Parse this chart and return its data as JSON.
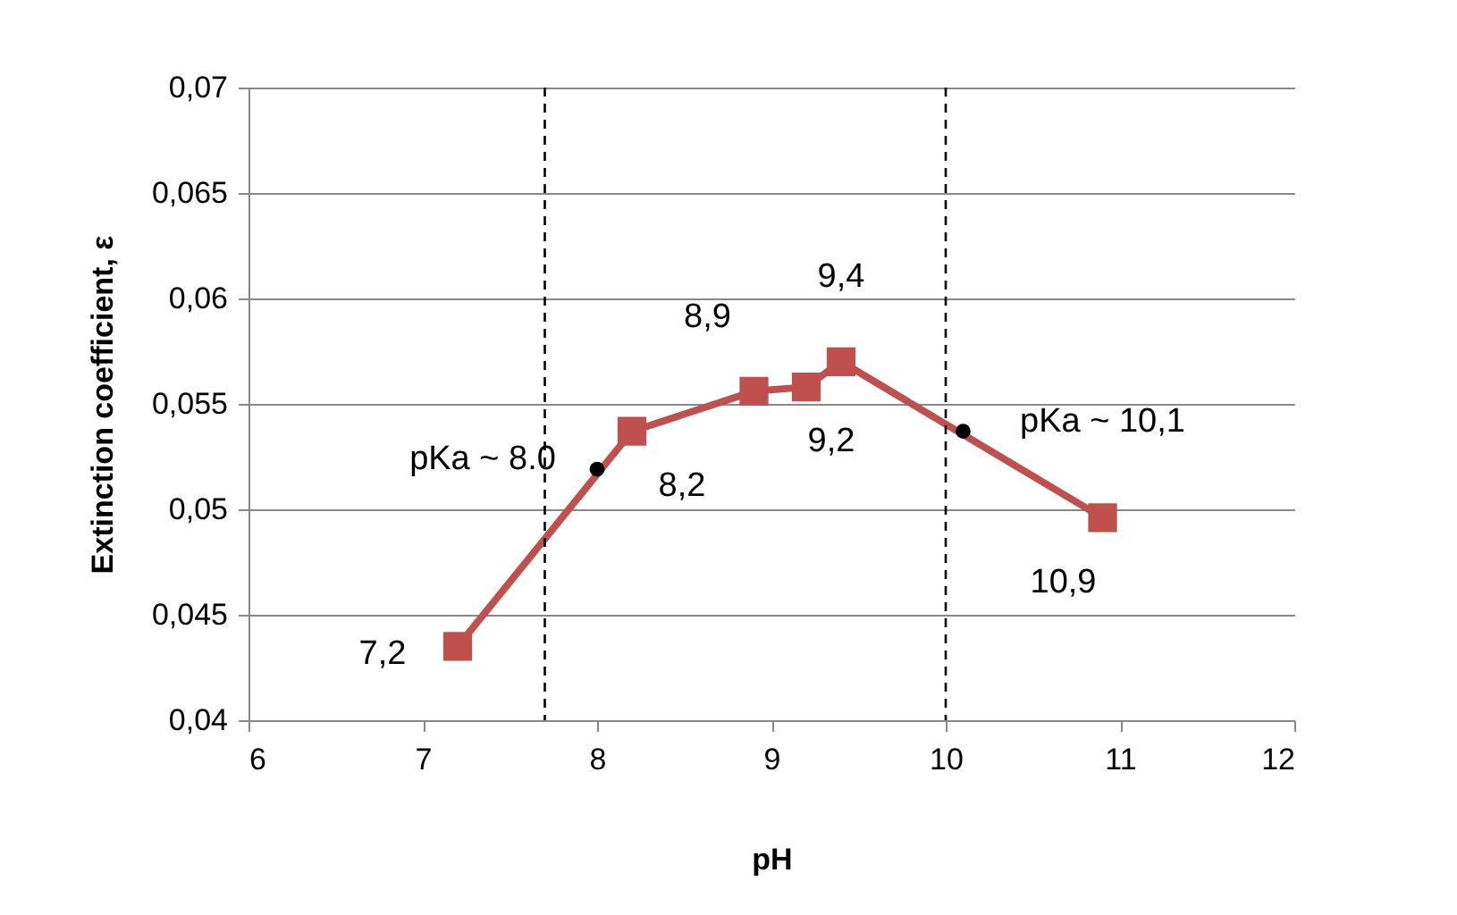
{
  "chart_data": {
    "type": "line",
    "xlabel": "pH",
    "ylabel": "Extinction coefficient, ε",
    "series": [
      {
        "color": "#c0504d",
        "marker": "square",
        "x": [
          7.2,
          8.2,
          8.9,
          9.2,
          9.4,
          10.9
        ],
        "values": [
          0.0435,
          0.0537,
          0.0556,
          0.0558,
          0.057,
          0.0496
        ]
      },
      {
        "type": "scatter",
        "color": "#000000",
        "marker": "circle",
        "x": [
          8.0,
          10.1
        ],
        "values": [
          0.0519,
          0.0537
        ]
      }
    ],
    "xlim": [
      6,
      12
    ],
    "xticks": [
      6,
      7,
      8,
      9,
      10,
      11,
      12
    ],
    "ylim": [
      0.04,
      0.07
    ],
    "yticks": [
      {
        "value": 0.04,
        "label": "0,04"
      },
      {
        "value": 0.045,
        "label": "0,045"
      },
      {
        "value": 0.05,
        "label": "0,05"
      },
      {
        "value": 0.055,
        "label": "0,055"
      },
      {
        "value": 0.06,
        "label": "0,06"
      },
      {
        "value": 0.065,
        "label": "0,065"
      },
      {
        "value": 0.07,
        "label": "0,07"
      }
    ],
    "grid": "y",
    "ref_lines": [
      {
        "axis": "x",
        "value": 7.7,
        "line_style": "dashed",
        "color": "#000000"
      },
      {
        "axis": "x",
        "value": 10.0,
        "line_style": "dashed",
        "color": "#000000"
      }
    ],
    "annotations": [
      {
        "text": "7,2",
        "x": 7.2,
        "y": 0.0435
      },
      {
        "text": "8,2",
        "x": 8.2,
        "y": 0.0537
      },
      {
        "text": "8,9",
        "x": 8.9,
        "y": 0.0556
      },
      {
        "text": "9,2",
        "x": 9.2,
        "y": 0.0558
      },
      {
        "text": "9,4",
        "x": 9.4,
        "y": 0.057
      },
      {
        "text": "10,9",
        "x": 10.9,
        "y": 0.0496
      },
      {
        "text": "pKa ~ 8.0",
        "x": 8.0,
        "y": 0.0519
      },
      {
        "text": "pKa ~ 10,1",
        "x": 10.1,
        "y": 0.0537
      }
    ]
  }
}
